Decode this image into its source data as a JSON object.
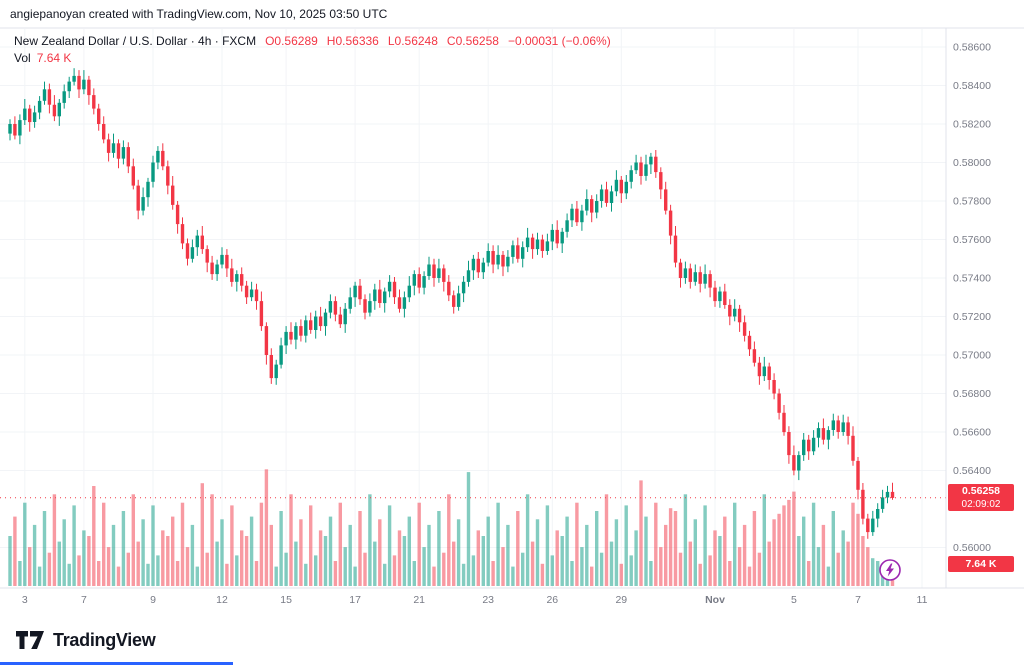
{
  "attribution": "angiepanoyan created with TradingView.com, Nov 10, 2025 03:50 UTC",
  "legend": {
    "title": "New Zealand Dollar / U.S. Dollar · 4h · FXCM",
    "open": "O0.56289",
    "high": "H0.56336",
    "low": "L0.56248",
    "close": "C0.56258",
    "change": "−0.00031 (−0.06%)",
    "vol_label": "Vol",
    "vol_value": "7.64 K"
  },
  "price_scale": {
    "current_price": "0.56258",
    "countdown": "02:09:02",
    "vol_badge": "7.64 K"
  },
  "footer": {
    "logo_text": "TradingView"
  },
  "colors": {
    "up": "#089981",
    "down": "#f23645",
    "accent": "#f23645",
    "grid": "#f2f4f7",
    "axis_text": "#787b86",
    "text": "#131722",
    "purple": "#9c27b0",
    "blue_bar": "#2962ff"
  },
  "chart_data": {
    "type": "candlestick+volume",
    "title": "New Zealand Dollar / U.S. Dollar · 4h · FXCM",
    "symbol": "NZDUSD",
    "interval": "4h",
    "exchange": "FXCM",
    "last_price": "0.56258",
    "ylim": [
      0.5585,
      0.587
    ],
    "grid": true,
    "y_ticks": [
      "0.58600",
      "0.58400",
      "0.58200",
      "0.58000",
      "0.57800",
      "0.57600",
      "0.57400",
      "0.57200",
      "0.57000",
      "0.56800",
      "0.56600",
      "0.56400",
      "0.56000"
    ],
    "x_ticks": [
      {
        "label": "3",
        "i": 3
      },
      {
        "label": "7",
        "i": 15
      },
      {
        "label": "9",
        "i": 29
      },
      {
        "label": "12",
        "i": 43
      },
      {
        "label": "15",
        "i": 56
      },
      {
        "label": "17",
        "i": 70
      },
      {
        "label": "21",
        "i": 83
      },
      {
        "label": "23",
        "i": 97
      },
      {
        "label": "26",
        "i": 110
      },
      {
        "label": "29",
        "i": 124
      },
      {
        "label": "Nov",
        "i": 143
      },
      {
        "label": "5",
        "i": 159
      },
      {
        "label": "7",
        "i": 172
      },
      {
        "label": "11",
        "i": 185
      }
    ],
    "candle_fields": [
      "open",
      "high",
      "low",
      "close",
      "volume_k"
    ],
    "price_divisor": 100000,
    "candles": [
      [
        58150,
        58225,
        58115,
        58200,
        18
      ],
      [
        58200,
        58240,
        58120,
        58140,
        25
      ],
      [
        58140,
        58250,
        58095,
        58220,
        9
      ],
      [
        58220,
        58330,
        58195,
        58280,
        30
      ],
      [
        58280,
        58300,
        58160,
        58210,
        14
      ],
      [
        58210,
        58295,
        58180,
        58260,
        22
      ],
      [
        58260,
        58345,
        58225,
        58320,
        7
      ],
      [
        58320,
        58420,
        58300,
        58380,
        27
      ],
      [
        58380,
        58410,
        58255,
        58300,
        12
      ],
      [
        58300,
        58350,
        58215,
        58240,
        33
      ],
      [
        58240,
        58330,
        58190,
        58310,
        16
      ],
      [
        58310,
        58405,
        58280,
        58370,
        24
      ],
      [
        58370,
        58445,
        58335,
        58420,
        8
      ],
      [
        58420,
        58490,
        58400,
        58450,
        29
      ],
      [
        58450,
        58480,
        58335,
        58380,
        11
      ],
      [
        58380,
        58480,
        58355,
        58430,
        20
      ],
      [
        58430,
        58450,
        58300,
        58350,
        18
      ],
      [
        58350,
        58385,
        58250,
        58280,
        36
      ],
      [
        58280,
        58305,
        58165,
        58200,
        9
      ],
      [
        58200,
        58240,
        58100,
        58120,
        30
      ],
      [
        58120,
        58150,
        58005,
        58050,
        14
      ],
      [
        58050,
        58150,
        58025,
        58100,
        22
      ],
      [
        58100,
        58120,
        57970,
        58020,
        7
      ],
      [
        58020,
        58115,
        57990,
        58080,
        27
      ],
      [
        58080,
        58105,
        57945,
        57980,
        12
      ],
      [
        57980,
        58020,
        57860,
        57880,
        33
      ],
      [
        57880,
        57910,
        57705,
        57750,
        16
      ],
      [
        57750,
        57870,
        57725,
        57820,
        24
      ],
      [
        57820,
        57920,
        57770,
        57900,
        8
      ],
      [
        57900,
        58035,
        57870,
        58000,
        29
      ],
      [
        58000,
        58085,
        57965,
        58060,
        11
      ],
      [
        58060,
        58100,
        57960,
        57980,
        20
      ],
      [
        57980,
        58010,
        57835,
        57880,
        18
      ],
      [
        57880,
        57930,
        57755,
        57780,
        25
      ],
      [
        57780,
        57800,
        57630,
        57680,
        9
      ],
      [
        57680,
        57715,
        57550,
        57580,
        30
      ],
      [
        57580,
        57605,
        57465,
        57500,
        14
      ],
      [
        57500,
        57600,
        57480,
        57560,
        22
      ],
      [
        57560,
        57650,
        57515,
        57620,
        7
      ],
      [
        57620,
        57670,
        57525,
        57550,
        37
      ],
      [
        57550,
        57570,
        57430,
        57480,
        12
      ],
      [
        57480,
        57515,
        57390,
        57420,
        33
      ],
      [
        57420,
        57495,
        57385,
        57470,
        16
      ],
      [
        57470,
        57560,
        57450,
        57520,
        24
      ],
      [
        57520,
        57550,
        57405,
        57450,
        8
      ],
      [
        57450,
        57500,
        57355,
        57380,
        29
      ],
      [
        57380,
        57440,
        57330,
        57420,
        11
      ],
      [
        57420,
        57455,
        57330,
        57360,
        20
      ],
      [
        57360,
        57385,
        57265,
        57300,
        18
      ],
      [
        57300,
        57380,
        57280,
        57340,
        25
      ],
      [
        57340,
        57370,
        57235,
        57280,
        9
      ],
      [
        57280,
        57330,
        57125,
        57150,
        30
      ],
      [
        57150,
        57170,
        56950,
        57000,
        42
      ],
      [
        57000,
        57035,
        56850,
        56880,
        22
      ],
      [
        56880,
        56975,
        56845,
        56950,
        7
      ],
      [
        56950,
        57090,
        56930,
        57050,
        27
      ],
      [
        57050,
        57150,
        57005,
        57120,
        12
      ],
      [
        57120,
        57170,
        57055,
        57080,
        33
      ],
      [
        57080,
        57170,
        57030,
        57150,
        16
      ],
      [
        57150,
        57185,
        57070,
        57100,
        24
      ],
      [
        57100,
        57205,
        57065,
        57180,
        8
      ],
      [
        57180,
        57220,
        57110,
        57130,
        29
      ],
      [
        57130,
        57230,
        57085,
        57200,
        11
      ],
      [
        57200,
        57250,
        57125,
        57150,
        20
      ],
      [
        57150,
        57240,
        57100,
        57220,
        18
      ],
      [
        57220,
        57315,
        57190,
        57280,
        25
      ],
      [
        57280,
        57305,
        57175,
        57210,
        9
      ],
      [
        57210,
        57250,
        57140,
        57160,
        30
      ],
      [
        57160,
        57270,
        57115,
        57240,
        14
      ],
      [
        57240,
        57350,
        57215,
        57300,
        22
      ],
      [
        57300,
        57380,
        57250,
        57360,
        7
      ],
      [
        57360,
        57395,
        57260,
        57290,
        27
      ],
      [
        57290,
        57315,
        57185,
        57220,
        12
      ],
      [
        57220,
        57320,
        57200,
        57280,
        33
      ],
      [
        57280,
        57370,
        57235,
        57340,
        16
      ],
      [
        57340,
        57390,
        57245,
        57270,
        24
      ],
      [
        57270,
        57350,
        57220,
        57330,
        8
      ],
      [
        57330,
        57415,
        57300,
        57380,
        29
      ],
      [
        57380,
        57405,
        57265,
        57300,
        11
      ],
      [
        57300,
        57340,
        57220,
        57240,
        20
      ],
      [
        57240,
        57330,
        57195,
        57300,
        18
      ],
      [
        57300,
        57410,
        57275,
        57360,
        25
      ],
      [
        57360,
        57440,
        57310,
        57420,
        9
      ],
      [
        57420,
        57455,
        57320,
        57350,
        30
      ],
      [
        57350,
        57435,
        57315,
        57410,
        14
      ],
      [
        57410,
        57510,
        57390,
        57470,
        22
      ],
      [
        57470,
        57500,
        57355,
        57400,
        7
      ],
      [
        57400,
        57500,
        57375,
        57450,
        27
      ],
      [
        57450,
        57470,
        57330,
        57380,
        12
      ],
      [
        57380,
        57415,
        57280,
        57310,
        33
      ],
      [
        57310,
        57335,
        57215,
        57250,
        16
      ],
      [
        57250,
        57360,
        57230,
        57320,
        24
      ],
      [
        57320,
        57410,
        57275,
        57380,
        8
      ],
      [
        57380,
        57490,
        57355,
        57440,
        41
      ],
      [
        57440,
        57520,
        57390,
        57500,
        11
      ],
      [
        57500,
        57535,
        57400,
        57430,
        20
      ],
      [
        57430,
        57505,
        57395,
        57480,
        18
      ],
      [
        57480,
        57580,
        57460,
        57540,
        25
      ],
      [
        57540,
        57570,
        57425,
        57470,
        9
      ],
      [
        57470,
        57570,
        57445,
        57520,
        30
      ],
      [
        57520,
        57540,
        57410,
        57460,
        14
      ],
      [
        57460,
        57545,
        57430,
        57510,
        22
      ],
      [
        57510,
        57595,
        57475,
        57570,
        7
      ],
      [
        57570,
        57610,
        57480,
        57500,
        27
      ],
      [
        57500,
        57590,
        57455,
        57560,
        12
      ],
      [
        57560,
        57660,
        57535,
        57610,
        33
      ],
      [
        57610,
        57630,
        57500,
        57550,
        16
      ],
      [
        57550,
        57635,
        57520,
        57600,
        24
      ],
      [
        57600,
        57625,
        57505,
        57540,
        8
      ],
      [
        57540,
        57630,
        57520,
        57590,
        29
      ],
      [
        57590,
        57680,
        57545,
        57650,
        11
      ],
      [
        57650,
        57700,
        57555,
        57580,
        20
      ],
      [
        57580,
        57660,
        57530,
        57640,
        18
      ],
      [
        57640,
        57735,
        57610,
        57700,
        25
      ],
      [
        57700,
        57785,
        57665,
        57760,
        9
      ],
      [
        57760,
        57800,
        57670,
        57690,
        30
      ],
      [
        57690,
        57780,
        57645,
        57750,
        14
      ],
      [
        57750,
        57860,
        57725,
        57810,
        22
      ],
      [
        57810,
        57830,
        57690,
        57740,
        7
      ],
      [
        57740,
        57835,
        57710,
        57800,
        27
      ],
      [
        57800,
        57885,
        57765,
        57860,
        12
      ],
      [
        57860,
        57900,
        57770,
        57790,
        33
      ],
      [
        57790,
        57880,
        57745,
        57850,
        16
      ],
      [
        57850,
        57960,
        57825,
        57910,
        24
      ],
      [
        57910,
        57930,
        57790,
        57840,
        8
      ],
      [
        57840,
        57935,
        57810,
        57900,
        29
      ],
      [
        57900,
        57985,
        57865,
        57960,
        11
      ],
      [
        57960,
        58040,
        57940,
        58000,
        20
      ],
      [
        58000,
        58030,
        57885,
        57930,
        38
      ],
      [
        57930,
        58040,
        57905,
        57990,
        25
      ],
      [
        57990,
        58050,
        57940,
        58030,
        9
      ],
      [
        58030,
        58065,
        57920,
        57950,
        30
      ],
      [
        57950,
        57975,
        57810,
        57860,
        14
      ],
      [
        57860,
        57900,
        57730,
        57750,
        22
      ],
      [
        57750,
        57780,
        57575,
        57620,
        28
      ],
      [
        57620,
        57670,
        57455,
        57480,
        27
      ],
      [
        57480,
        57500,
        57350,
        57400,
        12
      ],
      [
        57400,
        57485,
        57370,
        57450,
        33
      ],
      [
        57450,
        57475,
        57345,
        57380,
        16
      ],
      [
        57380,
        57470,
        57360,
        57430,
        24
      ],
      [
        57430,
        57460,
        57325,
        57370,
        8
      ],
      [
        57370,
        57470,
        57345,
        57420,
        29
      ],
      [
        57420,
        57440,
        57300,
        57350,
        11
      ],
      [
        57350,
        57385,
        57250,
        57280,
        20
      ],
      [
        57280,
        57355,
        57245,
        57330,
        18
      ],
      [
        57330,
        57370,
        57240,
        57260,
        25
      ],
      [
        57260,
        57290,
        57155,
        57200,
        9
      ],
      [
        57200,
        57290,
        57175,
        57240,
        30
      ],
      [
        57240,
        57260,
        57120,
        57170,
        14
      ],
      [
        57170,
        57205,
        57070,
        57100,
        22
      ],
      [
        57100,
        57125,
        56995,
        57030,
        7
      ],
      [
        57030,
        57070,
        56940,
        56960,
        27
      ],
      [
        56960,
        56990,
        56845,
        56890,
        12
      ],
      [
        56890,
        56990,
        56865,
        56940,
        33
      ],
      [
        56940,
        56960,
        56820,
        56870,
        16
      ],
      [
        56870,
        56905,
        56770,
        56800,
        24
      ],
      [
        56800,
        56825,
        56665,
        56700,
        26
      ],
      [
        56700,
        56740,
        56580,
        56600,
        29
      ],
      [
        56600,
        56630,
        56435,
        56480,
        31
      ],
      [
        56480,
        56530,
        56375,
        56400,
        34
      ],
      [
        56400,
        56500,
        56350,
        56480,
        18
      ],
      [
        56480,
        56595,
        56450,
        56560,
        25
      ],
      [
        56560,
        56585,
        56455,
        56500,
        9
      ],
      [
        56500,
        56610,
        56480,
        56570,
        30
      ],
      [
        56570,
        56650,
        56520,
        56620,
        14
      ],
      [
        56620,
        56670,
        56535,
        56560,
        22
      ],
      [
        56560,
        56630,
        56510,
        56610,
        7
      ],
      [
        56610,
        56695,
        56580,
        56660,
        27
      ],
      [
        56660,
        56685,
        56565,
        56600,
        12
      ],
      [
        56600,
        56690,
        56580,
        56650,
        20
      ],
      [
        56650,
        56680,
        56535,
        56580,
        16
      ],
      [
        56580,
        56630,
        56425,
        56450,
        30
      ],
      [
        56450,
        56470,
        56250,
        56300,
        26
      ],
      [
        56300,
        56335,
        56120,
        56150,
        18
      ],
      [
        56150,
        56175,
        56045,
        56080,
        14
      ],
      [
        56080,
        56190,
        56060,
        56150,
        10
      ],
      [
        56150,
        56230,
        56105,
        56200,
        9
      ],
      [
        56200,
        56300,
        56180,
        56260,
        8
      ],
      [
        56260,
        56320,
        56230,
        56289,
        8
      ],
      [
        56289,
        56336,
        56248,
        56258,
        7.64
      ]
    ]
  }
}
